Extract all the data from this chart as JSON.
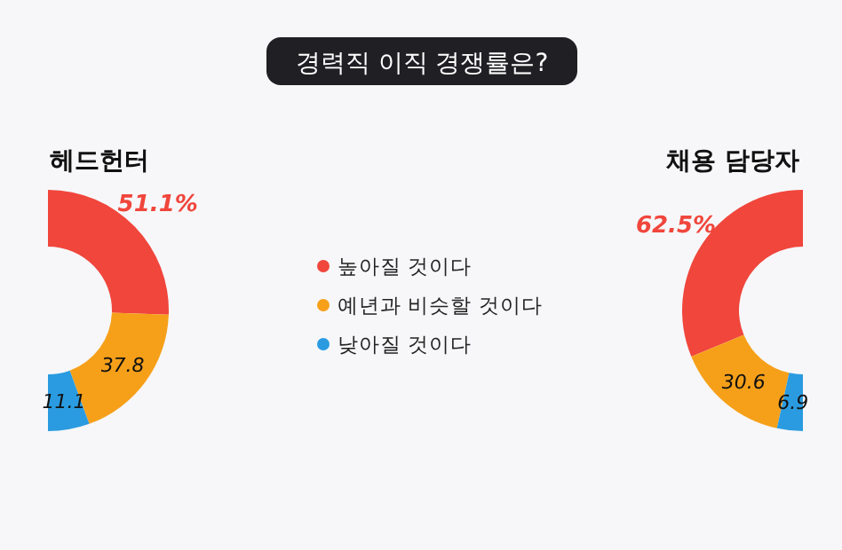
{
  "chart_data": [
    {
      "type": "other",
      "title": "경력직 이직 경쟁률은?"
    },
    {
      "type": "donut",
      "title": "헤드헌터",
      "categories": [
        "높아질 것이다",
        "예년과 비슷할 것이다",
        "낮아질 것이다"
      ],
      "values": [
        51.1,
        37.8,
        11.1
      ],
      "colors": [
        "#f0463c",
        "#f6a01a",
        "#2a9be0"
      ],
      "value_labels": [
        "51.1%",
        "37.8",
        "11.1"
      ],
      "legend": "right"
    },
    {
      "type": "donut",
      "title": "채용 담당자",
      "values": [
        62.5,
        30.6,
        6.9
      ],
      "colors": [
        "#f0463c",
        "#f6a01a",
        "#2a9be0"
      ],
      "value_labels": [
        "62.5%",
        "30.6",
        "6.9"
      ]
    }
  ]
}
